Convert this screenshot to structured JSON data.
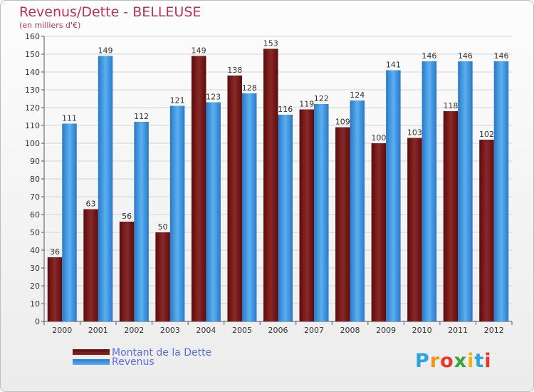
{
  "title": "Revenus/Dette - BELLEUSE",
  "subtitle": "(en milliers d'€)",
  "logo": {
    "letters": [
      "P",
      "r",
      "o",
      "x",
      "i",
      "t",
      "i"
    ],
    "colors": [
      "#2aa5e0",
      "#f0941e",
      "#e53a28",
      "#3aa53a",
      "#f0b416",
      "#2aa5e0",
      "#e53a28"
    ]
  },
  "chart_data": {
    "type": "bar",
    "title": "Revenus/Dette - BELLEUSE",
    "ylabel": "(en milliers d'€)",
    "ylim": [
      0,
      160
    ],
    "yticks": [
      0,
      10,
      20,
      30,
      40,
      50,
      60,
      70,
      80,
      90,
      100,
      110,
      120,
      130,
      140,
      150,
      160
    ],
    "grid": true,
    "legend_position": "bottom-left",
    "categories": [
      "2000",
      "2001",
      "2002",
      "2003",
      "2004",
      "2005",
      "2006",
      "2007",
      "2008",
      "2009",
      "2010",
      "2011",
      "2012"
    ],
    "series": [
      {
        "name": "Montant de la Dette",
        "color": "#7a1a1a",
        "values": [
          36,
          63,
          56,
          50,
          149,
          138,
          153,
          119,
          109,
          100,
          103,
          118,
          102
        ]
      },
      {
        "name": "Revenus",
        "color": "#3a95e0",
        "values": [
          111,
          149,
          112,
          121,
          123,
          128,
          116,
          122,
          124,
          141,
          146,
          146,
          146
        ]
      }
    ]
  }
}
